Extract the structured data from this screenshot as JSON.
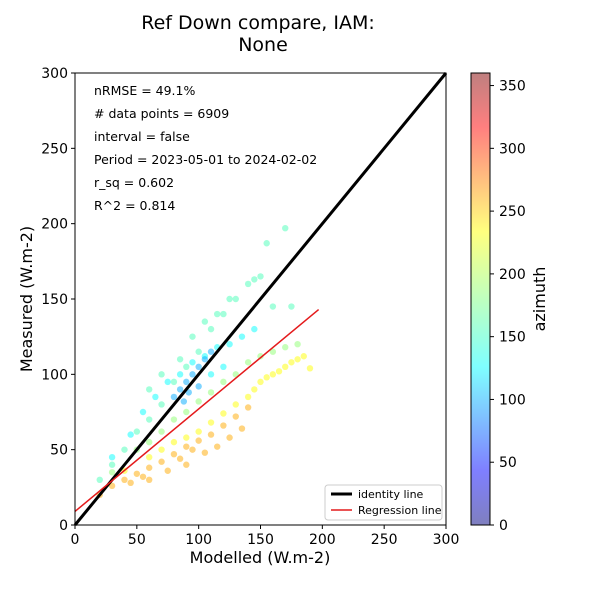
{
  "chart_data": {
    "type": "scatter",
    "title_lines": [
      "Ref Down compare, IAM:",
      "None"
    ],
    "xlabel": "Modelled (W.m-2)",
    "ylabel": "Measured (W.m-2)",
    "xlim": [
      0,
      300
    ],
    "ylim": [
      0,
      300
    ],
    "xticks": [
      "0",
      "50",
      "100",
      "150",
      "200",
      "250",
      "300"
    ],
    "yticks": [
      "0",
      "50",
      "100",
      "150",
      "200",
      "250",
      "300"
    ],
    "grid": false,
    "annotations": [
      "nRMSE = 49.1%",
      "# data points = 6909",
      "interval = false",
      "Period = 2023-05-01 to 2024-02-02",
      "r_sq = 0.602",
      "R^2 = 0.814"
    ],
    "identity_line": {
      "name": "identity line",
      "x": [
        0,
        300
      ],
      "y": [
        0,
        300
      ],
      "color": "#000000"
    },
    "regression_line": {
      "name": "Regression line",
      "x": [
        0,
        197
      ],
      "y": [
        9,
        143
      ],
      "color": "#e41a1c"
    },
    "legend_placement": "lower-right",
    "colorbar": {
      "label": "azimuth",
      "range": [
        0,
        360
      ],
      "ticks": [
        "0",
        "50",
        "100",
        "150",
        "200",
        "250",
        "300",
        "350"
      ],
      "colormap": "jet",
      "alpha": 0.5
    },
    "point_clusters": [
      {
        "note": "orange band",
        "azimuth": 255,
        "points": [
          [
            20,
            20
          ],
          [
            30,
            26
          ],
          [
            40,
            30
          ],
          [
            50,
            34
          ],
          [
            60,
            38
          ],
          [
            70,
            42
          ],
          [
            80,
            47
          ],
          [
            90,
            52
          ],
          [
            100,
            56
          ],
          [
            110,
            60
          ],
          [
            120,
            66
          ],
          [
            130,
            72
          ],
          [
            140,
            78
          ],
          [
            60,
            30
          ],
          [
            75,
            36
          ],
          [
            90,
            40
          ],
          [
            105,
            48
          ],
          [
            115,
            52
          ],
          [
            125,
            58
          ],
          [
            135,
            64
          ],
          [
            45,
            28
          ],
          [
            55,
            32
          ],
          [
            85,
            44
          ],
          [
            95,
            50
          ]
        ]
      },
      {
        "note": "yellow band",
        "azimuth": 225,
        "points": [
          [
            40,
            36
          ],
          [
            60,
            45
          ],
          [
            80,
            55
          ],
          [
            100,
            62
          ],
          [
            120,
            74
          ],
          [
            140,
            85
          ],
          [
            150,
            95
          ],
          [
            160,
            100
          ],
          [
            170,
            105
          ],
          [
            180,
            110
          ],
          [
            190,
            104
          ],
          [
            130,
            80
          ],
          [
            110,
            68
          ],
          [
            90,
            58
          ],
          [
            70,
            50
          ],
          [
            145,
            90
          ],
          [
            155,
            98
          ],
          [
            165,
            102
          ],
          [
            175,
            108
          ],
          [
            185,
            112
          ]
        ]
      },
      {
        "note": "green-yellow band",
        "azimuth": 185,
        "points": [
          [
            30,
            35
          ],
          [
            50,
            50
          ],
          [
            70,
            62
          ],
          [
            90,
            75
          ],
          [
            110,
            88
          ],
          [
            130,
            100
          ],
          [
            150,
            112
          ],
          [
            170,
            118
          ],
          [
            180,
            120
          ],
          [
            160,
            115
          ],
          [
            140,
            108
          ],
          [
            120,
            95
          ],
          [
            100,
            82
          ],
          [
            80,
            70
          ],
          [
            60,
            55
          ]
        ]
      },
      {
        "note": "green band",
        "azimuth": 160,
        "points": [
          [
            20,
            30
          ],
          [
            30,
            40
          ],
          [
            40,
            50
          ],
          [
            50,
            62
          ],
          [
            60,
            70
          ],
          [
            70,
            80
          ],
          [
            80,
            95
          ],
          [
            90,
            105
          ],
          [
            100,
            115
          ],
          [
            110,
            130
          ],
          [
            120,
            140
          ],
          [
            130,
            150
          ],
          [
            140,
            160
          ],
          [
            150,
            165
          ],
          [
            60,
            90
          ],
          [
            70,
            100
          ],
          [
            85,
            110
          ],
          [
            95,
            125
          ],
          [
            105,
            135
          ],
          [
            115,
            140
          ],
          [
            125,
            150
          ],
          [
            145,
            163
          ],
          [
            170,
            197
          ],
          [
            155,
            187
          ],
          [
            160,
            145
          ],
          [
            175,
            145
          ]
        ]
      },
      {
        "note": "cyan band",
        "azimuth": 135,
        "points": [
          [
            30,
            45
          ],
          [
            45,
            60
          ],
          [
            55,
            75
          ],
          [
            65,
            85
          ],
          [
            75,
            95
          ],
          [
            85,
            100
          ],
          [
            95,
            108
          ],
          [
            105,
            112
          ],
          [
            115,
            118
          ],
          [
            125,
            120
          ],
          [
            135,
            125
          ],
          [
            145,
            130
          ],
          [
            120,
            105
          ],
          [
            110,
            100
          ]
        ]
      },
      {
        "note": "blue band",
        "azimuth": 105,
        "points": [
          [
            80,
            85
          ],
          [
            85,
            90
          ],
          [
            90,
            95
          ],
          [
            95,
            100
          ],
          [
            100,
            105
          ],
          [
            105,
            110
          ],
          [
            110,
            115
          ],
          [
            100,
            92
          ],
          [
            92,
            88
          ],
          [
            88,
            82
          ]
        ]
      }
    ]
  }
}
